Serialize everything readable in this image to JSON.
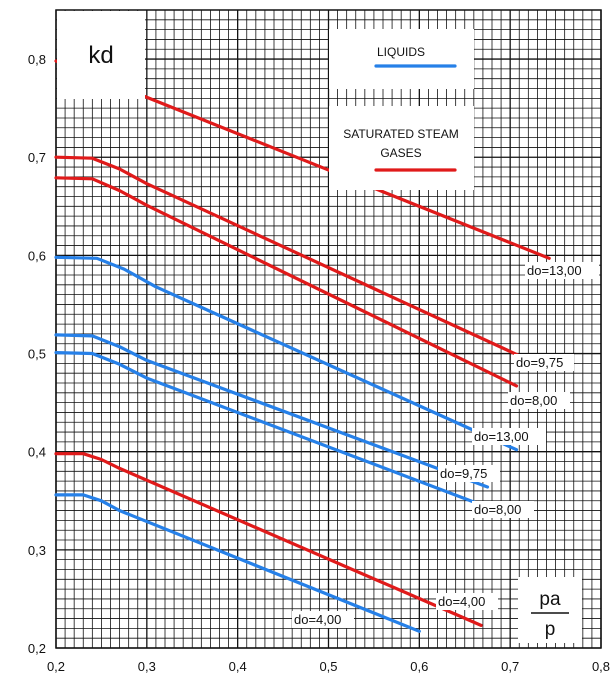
{
  "chart_data": {
    "type": "line",
    "ylabel": "kd",
    "xlabel_numerator": "pa",
    "xlabel_denominator": "p",
    "xlim": [
      0.2,
      0.8
    ],
    "ylim": [
      0.2,
      0.85
    ],
    "grid": true,
    "x_ticks": [
      "0,2",
      "0,3",
      "0,4",
      "0,5",
      "0,6",
      "0,7",
      "0,8"
    ],
    "y_ticks": [
      "0,2",
      "0,3",
      "0,4",
      "0,5",
      "0,6",
      "0,7",
      "0,8"
    ],
    "legend": [
      {
        "label": "LIQUIDS",
        "color": "#2680e8"
      },
      {
        "label_line1": "SATURATED STEAM",
        "label_line2": "GASES",
        "color": "#e01a1a"
      }
    ],
    "series": [
      {
        "name": "do=13,00",
        "medium": "gas",
        "color": "#e01a1a",
        "points": [
          [
            0.2,
            0.798
          ],
          [
            0.743,
            0.597
          ]
        ]
      },
      {
        "name": "do=9,75",
        "medium": "gas",
        "color": "#e01a1a",
        "points": [
          [
            0.2,
            0.7
          ],
          [
            0.24,
            0.699
          ],
          [
            0.27,
            0.688
          ],
          [
            0.3,
            0.673
          ],
          [
            0.726,
            0.491
          ]
        ]
      },
      {
        "name": "do=8,00",
        "medium": "gas",
        "color": "#e01a1a",
        "points": [
          [
            0.2,
            0.679
          ],
          [
            0.24,
            0.678
          ],
          [
            0.27,
            0.666
          ],
          [
            0.3,
            0.651
          ],
          [
            0.707,
            0.467
          ]
        ]
      },
      {
        "name": "do=13,00",
        "medium": "liquid",
        "color": "#2680e8",
        "points": [
          [
            0.2,
            0.598
          ],
          [
            0.245,
            0.597
          ],
          [
            0.275,
            0.586
          ],
          [
            0.31,
            0.568
          ],
          [
            0.707,
            0.402
          ]
        ]
      },
      {
        "name": "do=9,75",
        "medium": "liquid",
        "color": "#2680e8",
        "points": [
          [
            0.2,
            0.519
          ],
          [
            0.24,
            0.518
          ],
          [
            0.27,
            0.507
          ],
          [
            0.3,
            0.493
          ],
          [
            0.675,
            0.364
          ]
        ]
      },
      {
        "name": "do=8,00",
        "medium": "liquid",
        "color": "#2680e8",
        "points": [
          [
            0.2,
            0.501
          ],
          [
            0.24,
            0.5
          ],
          [
            0.27,
            0.489
          ],
          [
            0.3,
            0.475
          ],
          [
            0.665,
            0.347
          ]
        ]
      },
      {
        "name": "do=4,00",
        "medium": "gas",
        "color": "#e01a1a",
        "points": [
          [
            0.2,
            0.398
          ],
          [
            0.23,
            0.398
          ],
          [
            0.25,
            0.392
          ],
          [
            0.27,
            0.383
          ],
          [
            0.668,
            0.223
          ]
        ]
      },
      {
        "name": "do=4,00",
        "medium": "liquid",
        "color": "#2680e8",
        "points": [
          [
            0.2,
            0.356
          ],
          [
            0.23,
            0.356
          ],
          [
            0.25,
            0.35
          ],
          [
            0.27,
            0.34
          ],
          [
            0.6,
            0.217
          ]
        ]
      }
    ]
  }
}
